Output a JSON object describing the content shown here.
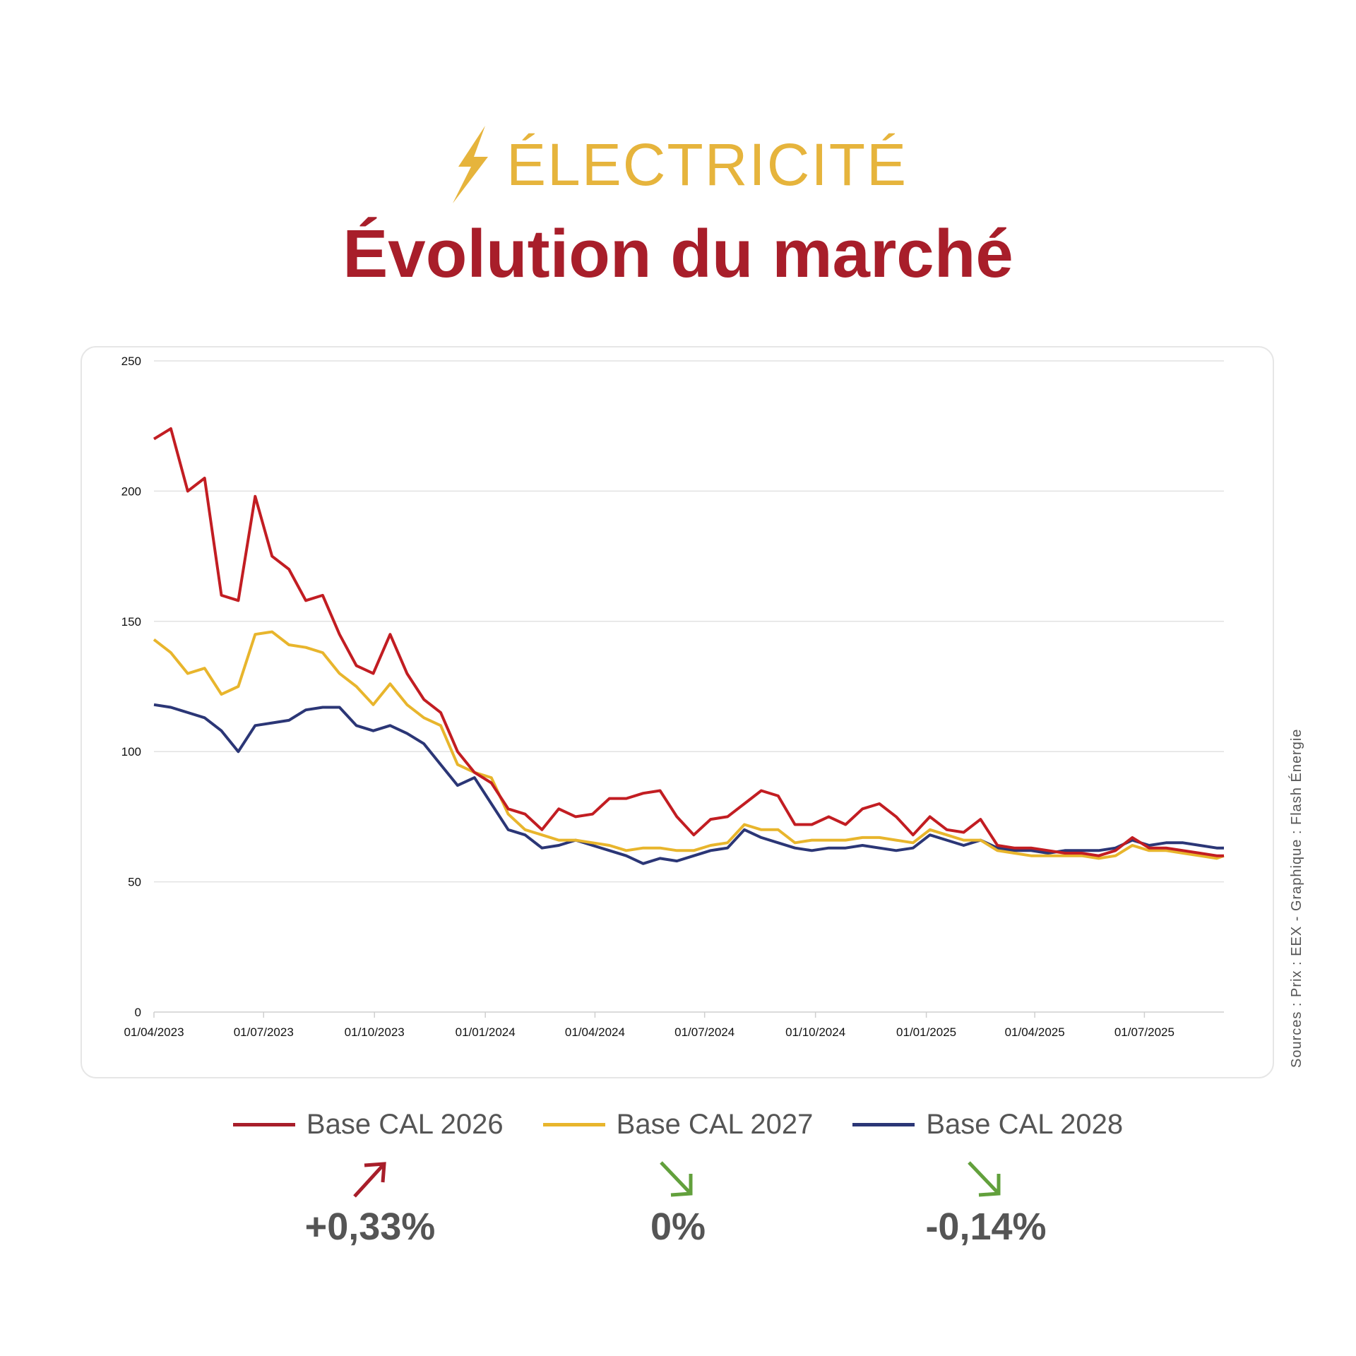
{
  "header": {
    "category": "ÉLECTRICITÉ",
    "title": "Évolution du marché",
    "icon": "lightning-bolt-icon"
  },
  "source": "Sources : Prix : EEX - Graphique : Flash Énergie",
  "colors": {
    "cal2026": "#c21d22",
    "cal2027": "#e8b52c",
    "cal2028": "#2b3676",
    "up": "#a81e2a",
    "down": "#62a03c"
  },
  "changes": [
    {
      "series": "Base CAL 2026",
      "value": "+0,33%",
      "direction": "up"
    },
    {
      "series": "Base CAL 2027",
      "value": "0%",
      "direction": "down"
    },
    {
      "series": "Base CAL 2028",
      "value": "-0,14%",
      "direction": "down"
    }
  ],
  "chart_data": {
    "type": "line",
    "title": "",
    "xlabel": "",
    "ylabel": "",
    "ylim": [
      0,
      250
    ],
    "yticks": [
      "0",
      "50",
      "100",
      "150",
      "200",
      "250"
    ],
    "xlim": [
      "2023-04-01",
      "2025-09-05"
    ],
    "xticks": [
      "01/04/2023",
      "01/07/2023",
      "01/10/2023",
      "01/01/2024",
      "01/04/2024",
      "01/07/2024",
      "01/10/2024",
      "01/01/2025",
      "01/04/2025",
      "01/07/2025"
    ],
    "grid": "horizontal",
    "legend": "bottom",
    "x": [
      "2023-04-01",
      "2023-04-15",
      "2023-04-29",
      "2023-05-13",
      "2023-05-27",
      "2023-06-10",
      "2023-06-24",
      "2023-07-08",
      "2023-07-22",
      "2023-08-05",
      "2023-08-19",
      "2023-09-02",
      "2023-09-16",
      "2023-09-30",
      "2023-10-14",
      "2023-10-28",
      "2023-11-11",
      "2023-11-25",
      "2023-12-09",
      "2023-12-23",
      "2024-01-06",
      "2024-01-20",
      "2024-02-03",
      "2024-02-17",
      "2024-03-02",
      "2024-03-16",
      "2024-03-30",
      "2024-04-13",
      "2024-04-27",
      "2024-05-11",
      "2024-05-25",
      "2024-06-08",
      "2024-06-22",
      "2024-07-06",
      "2024-07-20",
      "2024-08-03",
      "2024-08-17",
      "2024-08-31",
      "2024-09-14",
      "2024-09-28",
      "2024-10-12",
      "2024-10-26",
      "2024-11-09",
      "2024-11-23",
      "2024-12-07",
      "2024-12-21",
      "2025-01-04",
      "2025-01-18",
      "2025-02-01",
      "2025-02-15",
      "2025-03-01",
      "2025-03-15",
      "2025-03-29",
      "2025-04-12",
      "2025-04-26",
      "2025-05-10",
      "2025-05-24",
      "2025-06-07",
      "2025-06-21",
      "2025-07-05",
      "2025-07-19",
      "2025-08-02",
      "2025-08-16",
      "2025-08-30",
      "2025-09-05"
    ],
    "series": [
      {
        "name": "Base CAL 2026",
        "values": [
          220,
          224,
          200,
          205,
          160,
          158,
          198,
          175,
          170,
          158,
          160,
          145,
          133,
          130,
          145,
          130,
          120,
          115,
          100,
          92,
          88,
          78,
          76,
          70,
          78,
          75,
          76,
          82,
          82,
          84,
          85,
          75,
          68,
          74,
          75,
          80,
          85,
          83,
          72,
          72,
          75,
          72,
          78,
          80,
          75,
          68,
          75,
          70,
          69,
          74,
          64,
          63,
          63,
          62,
          61,
          61,
          60,
          62,
          67,
          63,
          63,
          62,
          61,
          60,
          60
        ]
      },
      {
        "name": "Base CAL 2027",
        "values": [
          143,
          138,
          130,
          132,
          122,
          125,
          145,
          146,
          141,
          140,
          138,
          130,
          125,
          118,
          126,
          118,
          113,
          110,
          95,
          92,
          90,
          76,
          70,
          68,
          66,
          66,
          65,
          64,
          62,
          63,
          63,
          62,
          62,
          64,
          65,
          72,
          70,
          70,
          65,
          66,
          66,
          66,
          67,
          67,
          66,
          65,
          70,
          68,
          66,
          66,
          62,
          61,
          60,
          60,
          60,
          60,
          59,
          60,
          64,
          62,
          62,
          61,
          60,
          59,
          60
        ]
      },
      {
        "name": "Base CAL 2028",
        "values": [
          118,
          117,
          115,
          113,
          108,
          100,
          110,
          111,
          112,
          116,
          117,
          117,
          110,
          108,
          110,
          107,
          103,
          95,
          87,
          90,
          80,
          70,
          68,
          63,
          64,
          66,
          64,
          62,
          60,
          57,
          59,
          58,
          60,
          62,
          63,
          70,
          67,
          65,
          63,
          62,
          63,
          63,
          64,
          63,
          62,
          63,
          68,
          66,
          64,
          66,
          63,
          62,
          62,
          61,
          62,
          62,
          62,
          63,
          66,
          64,
          65,
          65,
          64,
          63,
          63
        ]
      }
    ]
  }
}
